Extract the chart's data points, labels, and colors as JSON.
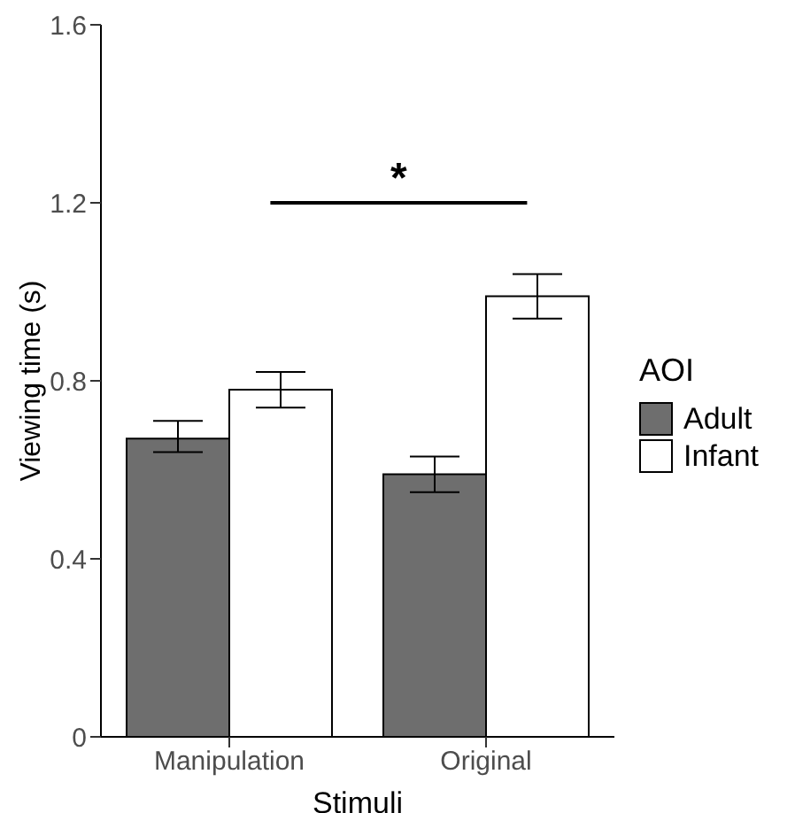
{
  "chart_data": {
    "type": "bar",
    "xlabel": "Stimuli",
    "ylabel": "Viewing time (s)",
    "legend_title": "AOI",
    "categories": [
      "Manipulation",
      "Original"
    ],
    "series": [
      {
        "name": "Adult",
        "color": "#6e6e6e",
        "values": [
          0.67,
          0.59
        ],
        "errors": [
          [
            0.64,
            0.71
          ],
          [
            0.55,
            0.63
          ]
        ]
      },
      {
        "name": "Infant",
        "color": "#ffffff",
        "values": [
          0.78,
          0.99
        ],
        "errors": [
          [
            0.74,
            0.82
          ],
          [
            0.94,
            1.04
          ]
        ]
      }
    ],
    "ylim": [
      0,
      1.6
    ],
    "yticks": [
      {
        "value": 0,
        "label": "0"
      },
      {
        "value": 0.4,
        "label": "0.4"
      },
      {
        "value": 0.8,
        "label": "0.8"
      },
      {
        "value": 1.2,
        "label": "1.2"
      },
      {
        "value": 1.6,
        "label": "1.6"
      }
    ],
    "grid": false,
    "legend": "right",
    "annotations": [
      "*"
    ]
  }
}
